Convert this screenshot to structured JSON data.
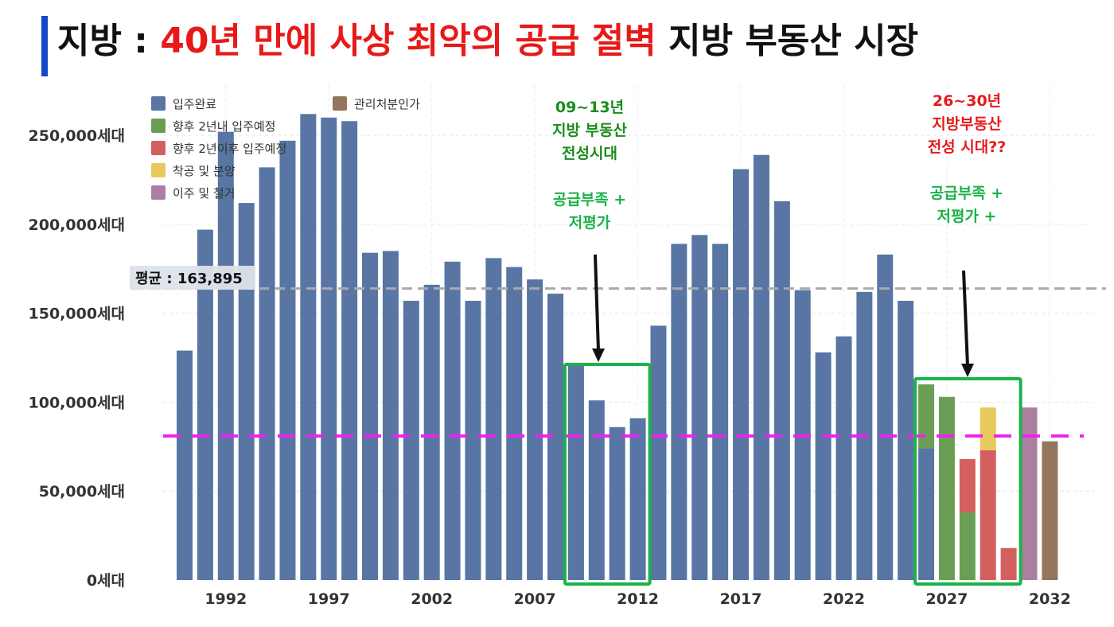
{
  "title": {
    "prefix": "지방 : ",
    "accent": "40년 만에 사상 최악의 공급 절벽",
    "suffix": " 지방 부동산 시장"
  },
  "colors": {
    "title_bar": "#1447c8",
    "title_accent": "#e81919",
    "green_annotation": "#1a8c1a",
    "green_box": "#1ab34a",
    "red_annotation": "#e81919",
    "average_line": "#aaaaaa",
    "reference_line": "#ee22ee"
  },
  "average_label": "평균 : 163,895",
  "annotations": {
    "left": {
      "lines": [
        "09~13년",
        "지방 부동산",
        "전성시대",
        "",
        "공급부족 +",
        "저평가"
      ]
    },
    "right": {
      "lines": [
        "26~30년",
        "지방부동산",
        "전성 시대??",
        "",
        "공급부족 +",
        "저평가 +"
      ]
    }
  },
  "chart_data": {
    "type": "bar",
    "stacked": true,
    "unit_suffix": "세대",
    "ylim": [
      0,
      270000
    ],
    "yticks": [
      0,
      50000,
      100000,
      150000,
      200000,
      250000
    ],
    "ytick_labels": [
      "0세대",
      "50,000세대",
      "100,000세대",
      "150,000세대",
      "200,000세대",
      "250,000세대"
    ],
    "xticks": [
      1992,
      1997,
      2002,
      2007,
      2012,
      2017,
      2022,
      2027,
      2032
    ],
    "x": [
      1990,
      1991,
      1992,
      1993,
      1994,
      1995,
      1996,
      1997,
      1998,
      1999,
      2000,
      2001,
      2002,
      2003,
      2004,
      2005,
      2006,
      2007,
      2008,
      2009,
      2010,
      2011,
      2012,
      2013,
      2014,
      2015,
      2016,
      2017,
      2018,
      2019,
      2020,
      2021,
      2022,
      2023,
      2024,
      2025,
      2026,
      2027,
      2028,
      2029,
      2030,
      2031,
      2032,
      2033
    ],
    "average": 163895,
    "reference_line": 81000,
    "grid": true,
    "legend_position": "top-left",
    "series": [
      {
        "name": "입주완료",
        "color": "#5875a4",
        "values": [
          129000,
          197000,
          252000,
          212000,
          232000,
          247000,
          262000,
          260000,
          258000,
          184000,
          185000,
          157000,
          166000,
          179000,
          157000,
          181000,
          176000,
          169000,
          161000,
          121000,
          101000,
          86000,
          91000,
          143000,
          189000,
          194000,
          189000,
          231000,
          239000,
          213000,
          163000,
          128000,
          137000,
          162000,
          183000,
          157000,
          74000,
          0,
          0,
          0,
          0,
          0,
          0,
          0
        ]
      },
      {
        "name": "향후 2년내 입주예정",
        "color": "#6b9e55",
        "values": [
          0,
          0,
          0,
          0,
          0,
          0,
          0,
          0,
          0,
          0,
          0,
          0,
          0,
          0,
          0,
          0,
          0,
          0,
          0,
          0,
          0,
          0,
          0,
          0,
          0,
          0,
          0,
          0,
          0,
          0,
          0,
          0,
          0,
          0,
          0,
          0,
          36000,
          103000,
          38000,
          0,
          0,
          0,
          0,
          0
        ]
      },
      {
        "name": "향후 2년이후 입주예정",
        "color": "#d35f5f",
        "values": [
          0,
          0,
          0,
          0,
          0,
          0,
          0,
          0,
          0,
          0,
          0,
          0,
          0,
          0,
          0,
          0,
          0,
          0,
          0,
          0,
          0,
          0,
          0,
          0,
          0,
          0,
          0,
          0,
          0,
          0,
          0,
          0,
          0,
          0,
          0,
          0,
          0,
          0,
          30000,
          73000,
          18000,
          0,
          0,
          0
        ]
      },
      {
        "name": "착공 및 분양",
        "color": "#e8c95b",
        "values": [
          0,
          0,
          0,
          0,
          0,
          0,
          0,
          0,
          0,
          0,
          0,
          0,
          0,
          0,
          0,
          0,
          0,
          0,
          0,
          0,
          0,
          0,
          0,
          0,
          0,
          0,
          0,
          0,
          0,
          0,
          0,
          0,
          0,
          0,
          0,
          0,
          0,
          0,
          0,
          24000,
          0,
          0,
          0,
          0
        ]
      },
      {
        "name": "이주 및 철거",
        "color": "#ac7fa1",
        "values": [
          0,
          0,
          0,
          0,
          0,
          0,
          0,
          0,
          0,
          0,
          0,
          0,
          0,
          0,
          0,
          0,
          0,
          0,
          0,
          0,
          0,
          0,
          0,
          0,
          0,
          0,
          0,
          0,
          0,
          0,
          0,
          0,
          0,
          0,
          0,
          0,
          0,
          0,
          0,
          0,
          0,
          97000,
          0,
          0
        ]
      },
      {
        "name": "관리처분인가",
        "color": "#94765e",
        "values": [
          0,
          0,
          0,
          0,
          0,
          0,
          0,
          0,
          0,
          0,
          0,
          0,
          0,
          0,
          0,
          0,
          0,
          0,
          0,
          0,
          0,
          0,
          0,
          0,
          0,
          0,
          0,
          0,
          0,
          0,
          0,
          0,
          0,
          0,
          0,
          0,
          0,
          0,
          0,
          0,
          0,
          0,
          78000,
          0
        ]
      }
    ],
    "highlight_ranges": [
      [
        2009,
        2012
      ],
      [
        2026,
        2030
      ]
    ]
  }
}
